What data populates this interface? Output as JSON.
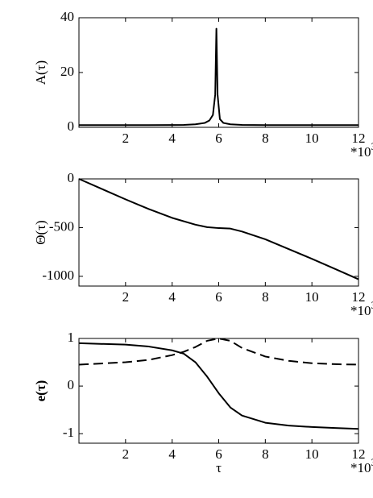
{
  "chart_data": [
    {
      "type": "line",
      "ylabel": "A(τ)",
      "x_multiplier": "*10",
      "x_multiplier_exponent": "3",
      "xlim": [
        0,
        12
      ],
      "xticks": [
        2,
        4,
        6,
        8,
        10,
        12
      ],
      "ylim": [
        0,
        40
      ],
      "yticks": [
        0,
        20,
        40
      ],
      "x": [
        0,
        1,
        2,
        3,
        4,
        4.5,
        5,
        5.4,
        5.6,
        5.75,
        5.85,
        5.9,
        5.95,
        6.05,
        6.2,
        6.5,
        7,
        8,
        9,
        10,
        11,
        12
      ],
      "series": [
        {
          "color": "#000000",
          "dashed": false,
          "values": [
            0.8,
            0.8,
            0.8,
            0.8,
            0.85,
            0.9,
            1.1,
            1.6,
            2.5,
            4.5,
            12,
            36,
            12,
            3,
            1.6,
            1.1,
            0.9,
            0.8,
            0.8,
            0.8,
            0.8,
            0.8
          ]
        }
      ]
    },
    {
      "type": "line",
      "ylabel": "Θ(τ)",
      "x_multiplier": "*10",
      "x_multiplier_exponent": "3",
      "xlim": [
        0,
        12
      ],
      "xticks": [
        2,
        4,
        6,
        8,
        10,
        12
      ],
      "ylim": [
        -1100,
        0
      ],
      "yticks": [
        -1000,
        -500,
        0
      ],
      "x": [
        0,
        1,
        2,
        3,
        4,
        5,
        5.5,
        6,
        6.5,
        7,
        8,
        9,
        10,
        11,
        12
      ],
      "series": [
        {
          "color": "#000000",
          "dashed": false,
          "values": [
            0,
            -105,
            -210,
            -310,
            -400,
            -470,
            -495,
            -505,
            -510,
            -540,
            -620,
            -720,
            -820,
            -925,
            -1030
          ]
        }
      ]
    },
    {
      "type": "line",
      "ylabel": "e(τ)",
      "xlabel": "τ",
      "x_multiplier": "*10",
      "x_multiplier_exponent": "3",
      "xlim": [
        0,
        12
      ],
      "xticks": [
        2,
        4,
        6,
        8,
        10,
        12
      ],
      "ylim": [
        -1.2,
        1
      ],
      "yticks": [
        -1,
        0,
        1
      ],
      "x": [
        0,
        2,
        3,
        4,
        4.5,
        5,
        5.5,
        6,
        6.5,
        7,
        8,
        9,
        10,
        11,
        12
      ],
      "series": [
        {
          "color": "#000000",
          "dashed": false,
          "values": [
            0.9,
            0.87,
            0.83,
            0.75,
            0.68,
            0.5,
            0.2,
            -0.15,
            -0.45,
            -0.62,
            -0.77,
            -0.83,
            -0.86,
            -0.88,
            -0.9
          ]
        },
        {
          "color": "#000000",
          "dashed": true,
          "values": [
            0.45,
            0.5,
            0.55,
            0.65,
            0.72,
            0.82,
            0.95,
            1,
            0.95,
            0.8,
            0.62,
            0.53,
            0.48,
            0.46,
            0.45
          ]
        }
      ]
    }
  ]
}
